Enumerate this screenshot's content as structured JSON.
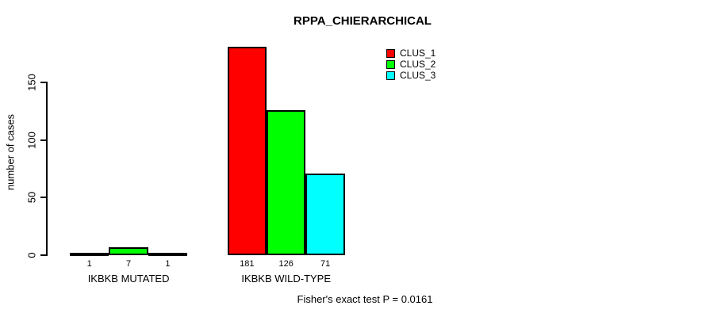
{
  "chart_data": {
    "type": "bar",
    "title": "RPPA_CHIERARCHICAL",
    "ylabel": "number of cases",
    "xlabel": "",
    "yticks": [
      0,
      50,
      100,
      150
    ],
    "axis_range": [
      0,
      150
    ],
    "grid": false,
    "categories": [
      "IKBKB MUTATED",
      "IKBKB WILD-TYPE"
    ],
    "series": [
      {
        "name": "CLUS_1",
        "color": "#ff0000",
        "values": [
          1,
          181
        ]
      },
      {
        "name": "CLUS_2",
        "color": "#00ff00",
        "values": [
          7,
          126
        ]
      },
      {
        "name": "CLUS_3",
        "color": "#00ffff",
        "values": [
          1,
          71
        ]
      }
    ],
    "legend_position": "upper-right-of-plot",
    "footer": "Fisher's exact test P = 0.0161"
  },
  "colors": {
    "axis": "#000000",
    "bar_border": "#000000",
    "background": "#ffffff"
  }
}
